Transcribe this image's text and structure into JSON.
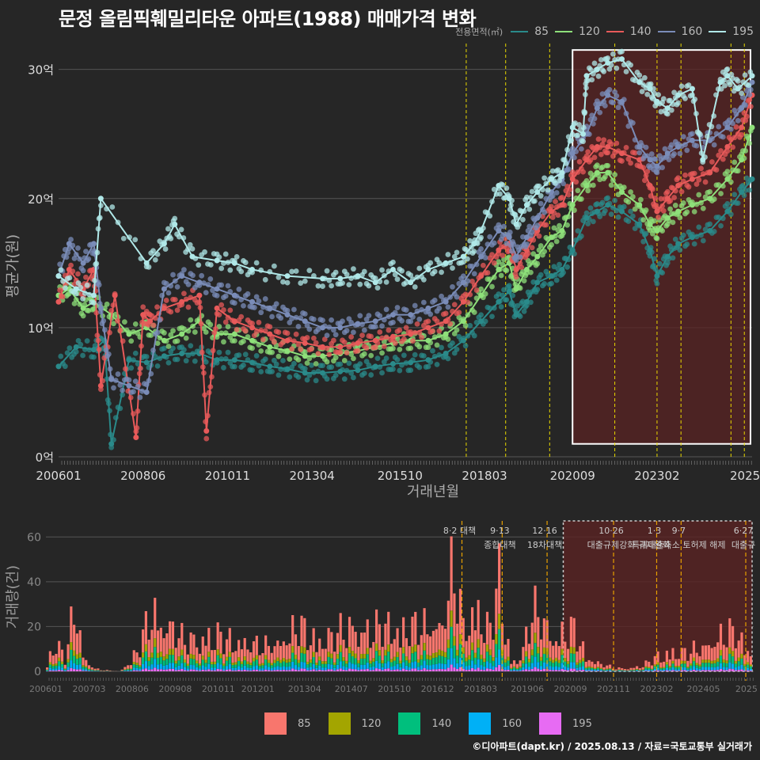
{
  "title": "문정 올림픽훼밀리타운 아파트(1988) 매매가격 변화",
  "credit": "©디아파트(dapt.kr) / 2025.08.13 / 자료=국토교통부 실거래가",
  "legend_title": "전용면적(㎡)",
  "legend_top": [
    {
      "label": "85",
      "color": "#2a8a8a"
    },
    {
      "label": "120",
      "color": "#8ee07a"
    },
    {
      "label": "140",
      "color": "#e85a5a"
    },
    {
      "label": "160",
      "color": "#7a8cb8"
    },
    {
      "label": "195",
      "color": "#b0e8e8"
    }
  ],
  "legend_bottom": [
    {
      "label": "85",
      "color": "#f8766d"
    },
    {
      "label": "120",
      "color": "#a3a500"
    },
    {
      "label": "140",
      "color": "#00bf7d"
    },
    {
      "label": "160",
      "color": "#00b0f6"
    },
    {
      "label": "195",
      "color": "#e76bf3"
    }
  ],
  "chart_data": [
    {
      "type": "line",
      "title": "문정 올림픽훼밀리타운 아파트(1988) 매매가격 변화",
      "xlabel": "거래년월",
      "ylabel": "평균가(원)",
      "x_tick_labels": [
        "200601",
        "200806",
        "201011",
        "201304",
        "201510",
        "201803",
        "202009",
        "202302",
        "2025"
      ],
      "y_tick_labels": [
        "0억",
        "10억",
        "20억",
        "30억"
      ],
      "ylim": [
        0,
        32
      ],
      "x_range": [
        2006.0,
        2025.7
      ],
      "grid": true,
      "policy_lines": [
        2017.58,
        2018.7,
        2019.95,
        2021.8,
        2023.0,
        2023.68,
        2025.1,
        2025.48
      ],
      "highlight_box": {
        "x": [
          2020.6,
          2025.7
        ],
        "y": [
          1,
          31.5
        ]
      },
      "series": [
        {
          "name": "85",
          "x": [
            2006.0,
            2006.5,
            2007.0,
            2007.3,
            2007.5,
            2008.0,
            2008.5,
            2009.0,
            2009.5,
            2010.0,
            2010.5,
            2011.0,
            2011.5,
            2012.0,
            2012.5,
            2013.0,
            2013.5,
            2014.0,
            2014.5,
            2015.0,
            2015.5,
            2016.0,
            2016.5,
            2017.0,
            2017.5,
            2018.0,
            2018.5,
            2018.8,
            2019.0,
            2019.3,
            2019.6,
            2020.0,
            2020.3,
            2020.6,
            2021.0,
            2021.3,
            2021.6,
            2022.0,
            2022.5,
            2022.8,
            2023.0,
            2023.3,
            2023.6,
            2024.0,
            2024.5,
            2025.0,
            2025.4,
            2025.7
          ],
          "y": [
            7.0,
            8.5,
            8.3,
            9.0,
            1.0,
            7.5,
            7.3,
            7.8,
            8.0,
            8.0,
            7.5,
            7.5,
            7.3,
            7.0,
            6.8,
            6.5,
            6.5,
            6.6,
            6.7,
            7.0,
            7.2,
            7.3,
            7.5,
            8.0,
            9.0,
            10.5,
            12.0,
            12.8,
            11.0,
            12.0,
            13.5,
            14.0,
            14.5,
            16.0,
            18.5,
            19.0,
            19.5,
            19.0,
            18.0,
            16.0,
            14.0,
            15.5,
            16.5,
            17.0,
            17.5,
            19.0,
            20.5,
            21.5
          ]
        },
        {
          "name": "120",
          "x": [
            2006.0,
            2006.3,
            2006.7,
            2007.0,
            2007.5,
            2008.0,
            2008.5,
            2009.0,
            2009.5,
            2010.0,
            2010.5,
            2011.0,
            2011.5,
            2012.0,
            2012.5,
            2013.0,
            2013.5,
            2014.0,
            2014.5,
            2015.0,
            2015.5,
            2016.0,
            2016.5,
            2017.0,
            2017.5,
            2018.0,
            2018.5,
            2018.8,
            2019.0,
            2019.3,
            2019.6,
            2020.0,
            2020.3,
            2020.6,
            2021.0,
            2021.3,
            2021.6,
            2022.0,
            2022.5,
            2022.8,
            2023.0,
            2023.3,
            2023.6,
            2024.0,
            2024.5,
            2025.0,
            2025.4,
            2025.7
          ],
          "y": [
            12.5,
            13.0,
            11.5,
            12.0,
            11.0,
            9.5,
            10.0,
            9.0,
            9.5,
            10.5,
            9.5,
            9.5,
            9.0,
            8.5,
            8.2,
            7.8,
            7.8,
            8.0,
            8.2,
            8.5,
            8.8,
            9.0,
            9.0,
            9.5,
            10.5,
            12.5,
            14.5,
            15.0,
            13.0,
            14.5,
            15.5,
            17.0,
            17.5,
            19.5,
            21.0,
            22.0,
            22.0,
            20.5,
            19.5,
            18.0,
            17.5,
            18.5,
            19.0,
            19.5,
            20.0,
            21.5,
            23.0,
            25.5
          ]
        },
        {
          "name": "140",
          "x": [
            2006.0,
            2006.3,
            2006.7,
            2007.0,
            2007.2,
            2007.6,
            2008.2,
            2008.4,
            2008.6,
            2009.0,
            2009.5,
            2010.0,
            2010.2,
            2010.5,
            2011.0,
            2011.5,
            2012.0,
            2012.5,
            2013.0,
            2013.5,
            2014.0,
            2014.5,
            2015.0,
            2015.5,
            2016.0,
            2016.5,
            2017.0,
            2017.5,
            2018.0,
            2018.5,
            2018.8,
            2019.0,
            2019.3,
            2019.6,
            2020.0,
            2020.3,
            2020.6,
            2021.0,
            2021.3,
            2021.6,
            2022.0,
            2022.5,
            2022.8,
            2023.0,
            2023.3,
            2023.6,
            2024.0,
            2024.5,
            2025.0,
            2025.4,
            2025.7
          ],
          "y": [
            12.0,
            14.5,
            13.0,
            14.5,
            5.5,
            12.5,
            1.5,
            11.0,
            10.5,
            11.5,
            12.0,
            12.5,
            2.0,
            11.5,
            10.5,
            10.0,
            9.5,
            9.0,
            8.8,
            8.5,
            8.5,
            8.8,
            9.0,
            9.3,
            9.5,
            10.0,
            10.5,
            12.0,
            14.0,
            16.0,
            16.5,
            14.5,
            16.0,
            17.5,
            19.0,
            19.5,
            21.5,
            23.0,
            24.0,
            24.0,
            23.5,
            23.0,
            21.0,
            19.0,
            20.0,
            21.0,
            21.5,
            22.0,
            24.0,
            25.5,
            28.0
          ]
        },
        {
          "name": "160",
          "x": [
            2006.0,
            2006.3,
            2006.7,
            2007.0,
            2007.2,
            2007.5,
            2008.0,
            2008.5,
            2009.0,
            2009.5,
            2010.0,
            2010.5,
            2011.0,
            2011.5,
            2012.0,
            2012.5,
            2013.0,
            2013.5,
            2014.0,
            2014.5,
            2015.0,
            2015.5,
            2016.0,
            2016.5,
            2017.0,
            2017.5,
            2018.0,
            2018.5,
            2018.8,
            2019.0,
            2019.3,
            2019.6,
            2020.0,
            2020.3,
            2020.6,
            2021.0,
            2021.3,
            2021.6,
            2022.0,
            2022.5,
            2022.8,
            2023.0,
            2023.3,
            2023.6,
            2024.0,
            2024.5,
            2025.0,
            2025.4,
            2025.7
          ],
          "y": [
            14.0,
            16.5,
            15.0,
            16.5,
            11.5,
            6.0,
            5.5,
            5.0,
            13.0,
            14.0,
            13.5,
            13.0,
            12.5,
            12.0,
            11.5,
            11.0,
            10.5,
            10.0,
            10.0,
            10.3,
            10.5,
            11.0,
            11.0,
            11.5,
            12.0,
            13.5,
            15.5,
            17.5,
            17.0,
            15.5,
            17.0,
            18.5,
            20.5,
            21.5,
            23.5,
            25.0,
            27.0,
            28.0,
            27.5,
            24.0,
            23.0,
            22.5,
            23.5,
            24.0,
            24.5,
            24.5,
            25.5,
            27.0,
            29.0
          ]
        },
        {
          "name": "195",
          "x": [
            2006.0,
            2006.5,
            2007.0,
            2007.2,
            2008.5,
            2009.0,
            2009.3,
            2009.8,
            2010.5,
            2011.0,
            2011.5,
            2012.5,
            2013.5,
            2014.0,
            2014.5,
            2015.0,
            2015.5,
            2016.0,
            2016.5,
            2017.0,
            2017.5,
            2017.8,
            2018.0,
            2018.5,
            2018.8,
            2019.0,
            2019.3,
            2019.6,
            2020.0,
            2020.3,
            2020.6,
            2020.9,
            2021.0,
            2021.3,
            2021.6,
            2022.0,
            2022.5,
            2022.8,
            2023.0,
            2023.3,
            2023.6,
            2024.0,
            2024.3,
            2024.8,
            2025.0,
            2025.3,
            2025.7
          ],
          "y": [
            14.0,
            13.0,
            12.5,
            20.0,
            15.0,
            16.5,
            18.0,
            15.5,
            15.2,
            15.0,
            14.5,
            14.0,
            13.8,
            13.8,
            14.0,
            13.5,
            14.5,
            13.5,
            14.5,
            15.0,
            15.5,
            16.5,
            17.5,
            21.0,
            20.0,
            18.0,
            19.5,
            20.5,
            21.5,
            22.0,
            25.5,
            25.0,
            29.5,
            30.0,
            30.5,
            30.8,
            29.0,
            28.5,
            27.5,
            27.0,
            28.0,
            28.5,
            23.0,
            29.0,
            29.5,
            28.5,
            29.5
          ]
        }
      ]
    },
    {
      "type": "bar",
      "stacked": true,
      "xlabel": "",
      "ylabel": "거래량(건)",
      "x_tick_labels": [
        "200601",
        "200703",
        "200806",
        "200908",
        "201011",
        "201201",
        "201304",
        "201407",
        "201510",
        "201612",
        "201803",
        "201906",
        "202009",
        "202111",
        "202302",
        "202405",
        "2025"
      ],
      "y_tick_labels": [
        "0",
        "20",
        "40",
        "60"
      ],
      "ylim": [
        0,
        70
      ],
      "x_range": [
        2006.0,
        2025.7
      ],
      "highlight_box": {
        "x": [
          2020.4,
          2025.7
        ],
        "y": [
          0,
          70
        ]
      },
      "monthly_total_profile": [
        {
          "x": 2006.0,
          "y": 5
        },
        {
          "x": 2006.2,
          "y": 22
        },
        {
          "x": 2006.5,
          "y": 8
        },
        {
          "x": 2006.8,
          "y": 47
        },
        {
          "x": 2007.0,
          "y": 10
        },
        {
          "x": 2007.3,
          "y": 2
        },
        {
          "x": 2007.5,
          "y": 1
        },
        {
          "x": 2008.0,
          "y": 0
        },
        {
          "x": 2008.3,
          "y": 6
        },
        {
          "x": 2008.6,
          "y": 18
        },
        {
          "x": 2008.9,
          "y": 40
        },
        {
          "x": 2009.2,
          "y": 32
        },
        {
          "x": 2009.5,
          "y": 30
        },
        {
          "x": 2009.8,
          "y": 20
        },
        {
          "x": 2010.2,
          "y": 22
        },
        {
          "x": 2010.6,
          "y": 25
        },
        {
          "x": 2011.0,
          "y": 21
        },
        {
          "x": 2011.5,
          "y": 20
        },
        {
          "x": 2012.0,
          "y": 16
        },
        {
          "x": 2012.5,
          "y": 20
        },
        {
          "x": 2013.0,
          "y": 30
        },
        {
          "x": 2013.5,
          "y": 22
        },
        {
          "x": 2014.0,
          "y": 24
        },
        {
          "x": 2014.5,
          "y": 31
        },
        {
          "x": 2015.0,
          "y": 27
        },
        {
          "x": 2015.5,
          "y": 31
        },
        {
          "x": 2016.0,
          "y": 29
        },
        {
          "x": 2016.5,
          "y": 30
        },
        {
          "x": 2017.0,
          "y": 32
        },
        {
          "x": 2017.3,
          "y": 68
        },
        {
          "x": 2017.6,
          "y": 28
        },
        {
          "x": 2018.0,
          "y": 45
        },
        {
          "x": 2018.3,
          "y": 26
        },
        {
          "x": 2018.6,
          "y": 62
        },
        {
          "x": 2018.9,
          "y": 6
        },
        {
          "x": 2019.2,
          "y": 10
        },
        {
          "x": 2019.5,
          "y": 40
        },
        {
          "x": 2019.8,
          "y": 35
        },
        {
          "x": 2020.1,
          "y": 22
        },
        {
          "x": 2020.4,
          "y": 26
        },
        {
          "x": 2020.7,
          "y": 28
        },
        {
          "x": 2021.0,
          "y": 10
        },
        {
          "x": 2021.3,
          "y": 6
        },
        {
          "x": 2021.8,
          "y": 2
        },
        {
          "x": 2022.2,
          "y": 2
        },
        {
          "x": 2022.6,
          "y": 4
        },
        {
          "x": 2023.0,
          "y": 10
        },
        {
          "x": 2023.4,
          "y": 14
        },
        {
          "x": 2023.8,
          "y": 12
        },
        {
          "x": 2024.2,
          "y": 16
        },
        {
          "x": 2024.6,
          "y": 21
        },
        {
          "x": 2024.9,
          "y": 25
        },
        {
          "x": 2025.2,
          "y": 26
        },
        {
          "x": 2025.5,
          "y": 15
        },
        {
          "x": 2025.7,
          "y": 10
        }
      ],
      "series": [
        {
          "name": "85",
          "share": 0.55
        },
        {
          "name": "120",
          "share": 0.12
        },
        {
          "name": "140",
          "share": 0.16
        },
        {
          "name": "160",
          "share": 0.12
        },
        {
          "name": "195",
          "share": 0.05
        }
      ],
      "policy_annotations": [
        {
          "x": 2017.58,
          "label1": "8·2 대책",
          "label2": ""
        },
        {
          "x": 2018.7,
          "label1": "9·13",
          "label2": "종합대책"
        },
        {
          "x": 2019.95,
          "label1": "12·16",
          "label2": "18차대책"
        },
        {
          "x": 2021.8,
          "label1": "10·26",
          "label2": "대출규제강화"
        },
        {
          "x": 2023.0,
          "label1": "1·3",
          "label2": "규제완화"
        },
        {
          "x": 2023.68,
          "label1": "9·7",
          "label2": "특례대출축소 토허제 해제"
        },
        {
          "x": 2025.48,
          "label1": "6·27",
          "label2": "대출규"
        }
      ]
    }
  ]
}
